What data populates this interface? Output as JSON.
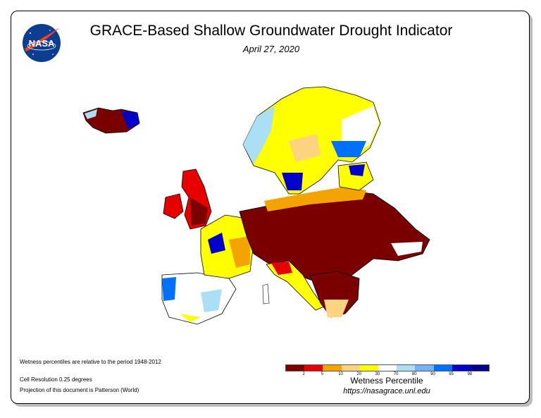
{
  "title": "GRACE-Based Shallow Groundwater Drought Indicator",
  "date": "April 27, 2020",
  "logo_text": "NASA",
  "notes": {
    "period": "Wetness percentiles are relative to the period 1948-2012",
    "resolution": "Cell Resolution 0.25 degrees",
    "projection": "Projection of this document is Patterson (World)"
  },
  "legend": {
    "title": "Wetness Percentile",
    "url": "https://nasagrace.unl.edu",
    "ticks": [
      "2",
      "5",
      "10",
      "20",
      "30",
      "70",
      "80",
      "90",
      "95",
      "98"
    ],
    "colors": [
      "#7a0000",
      "#e60000",
      "#f5a300",
      "#fcd37f",
      "#ffff00",
      "#ffffff",
      "#aadff5",
      "#73b2ff",
      "#0070ff",
      "#0000c8",
      "#00008b"
    ]
  }
}
